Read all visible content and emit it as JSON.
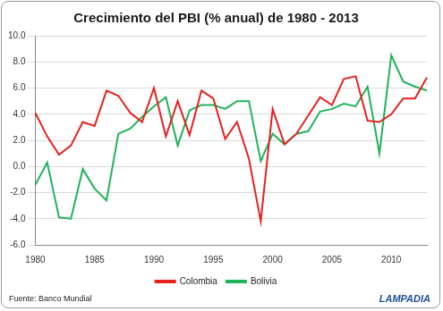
{
  "chart_data": {
    "type": "line",
    "title": "Crecimiento del PBI (% anual) de 1980 - 2013",
    "annotations": [
      "Fuente: Banco Mundial",
      "LAMPADIA"
    ],
    "categories": [
      "1980",
      null,
      null,
      null,
      null,
      "1985",
      null,
      null,
      null,
      null,
      "1990",
      null,
      null,
      null,
      null,
      "1995",
      null,
      null,
      null,
      null,
      "2000",
      null,
      null,
      null,
      null,
      "2005",
      null,
      null,
      null,
      null,
      "2010",
      null,
      null,
      null
    ],
    "series": [
      {
        "name": "Colombia",
        "color": "#e8201e",
        "values": [
          4.1,
          2.3,
          0.9,
          1.6,
          3.4,
          3.1,
          5.8,
          5.4,
          4.1,
          3.4,
          6.0,
          2.3,
          5.0,
          2.4,
          5.8,
          5.2,
          2.1,
          3.4,
          0.6,
          -4.2,
          4.4,
          1.7,
          2.5,
          3.9,
          5.3,
          4.7,
          6.7,
          6.9,
          3.5,
          3.4,
          4.0,
          5.2,
          5.2,
          6.8
        ]
      },
      {
        "name": "Bolivia",
        "color": "#1fb35a",
        "values": [
          -1.4,
          0.3,
          -3.9,
          -4.0,
          -0.2,
          -1.7,
          -2.6,
          2.5,
          2.9,
          3.8,
          4.6,
          5.3,
          1.6,
          4.3,
          4.7,
          4.7,
          4.4,
          5.0,
          5.0,
          0.4,
          2.5,
          1.7,
          2.5,
          2.7,
          4.2,
          4.4,
          4.8,
          4.6,
          6.1,
          1.0,
          8.5,
          6.5,
          6.1,
          5.8
        ]
      }
    ],
    "ylim": [
      -6,
      10
    ],
    "yticks": [
      {
        "value": -6,
        "label": "-6.0"
      },
      {
        "value": -4,
        "label": "-4.0"
      },
      {
        "value": -2,
        "label": "-2.0"
      },
      {
        "value": 0,
        "label": "0.0"
      },
      {
        "value": 2,
        "label": "2.0"
      },
      {
        "value": 4,
        "label": "4.0"
      },
      {
        "value": 6,
        "label": "6.0"
      },
      {
        "value": 8,
        "label": "8.0"
      },
      {
        "value": 10,
        "label": "10.0"
      }
    ],
    "grid": true,
    "legend": "bottom",
    "marker": "none"
  }
}
